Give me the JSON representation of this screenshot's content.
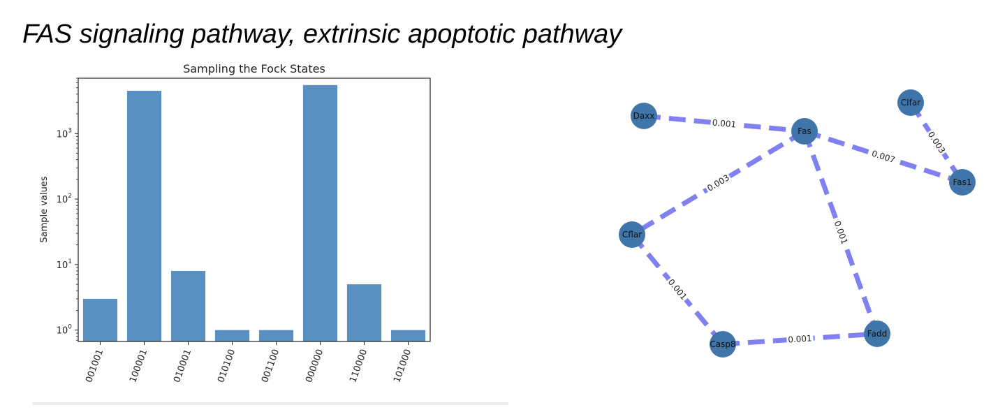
{
  "slide": {
    "title": "FAS signaling pathway, extrinsic apoptotic pathway"
  },
  "chart_data": {
    "type": "bar",
    "title": "Sampling the Fock States",
    "xlabel": "",
    "ylabel": "Sample values",
    "yscale": "log",
    "ylim": [
      0.67,
      7000
    ],
    "categories": [
      "001001",
      "100001",
      "010001",
      "010100",
      "001100",
      "000000",
      "110000",
      "101000"
    ],
    "values": [
      3,
      4500,
      8,
      1,
      1,
      5500,
      5,
      1
    ],
    "yticks": [
      {
        "value": 1,
        "base": "10",
        "exp": "0"
      },
      {
        "value": 10,
        "base": "10",
        "exp": "1"
      },
      {
        "value": 100,
        "base": "10",
        "exp": "2"
      },
      {
        "value": 1000,
        "base": "10",
        "exp": "3"
      }
    ],
    "bar_color": "#5a8fc1",
    "grid": false
  },
  "graph": {
    "node_color": "#3f75a8",
    "edge_color": "#8080f0",
    "nodes": [
      {
        "id": "Daxx",
        "label": "Daxx"
      },
      {
        "id": "Fas",
        "label": "Fas"
      },
      {
        "id": "Clfar",
        "label": "Clfar"
      },
      {
        "id": "Fas1",
        "label": "Fas1"
      },
      {
        "id": "Cflar",
        "label": "Cflar"
      },
      {
        "id": "Casp8",
        "label": "Casp8"
      },
      {
        "id": "Fadd",
        "label": "Fadd"
      }
    ],
    "edges": [
      {
        "source": "Daxx",
        "target": "Fas",
        "weight": "0.001"
      },
      {
        "source": "Fas",
        "target": "Fas1",
        "weight": "0.007"
      },
      {
        "source": "Clfar",
        "target": "Fas1",
        "weight": "0.003"
      },
      {
        "source": "Fas",
        "target": "Cflar",
        "weight": "0.003"
      },
      {
        "source": "Fas",
        "target": "Fadd",
        "weight": "0.001"
      },
      {
        "source": "Cflar",
        "target": "Casp8",
        "weight": "0.001"
      },
      {
        "source": "Casp8",
        "target": "Fadd",
        "weight": "0.001"
      }
    ]
  }
}
